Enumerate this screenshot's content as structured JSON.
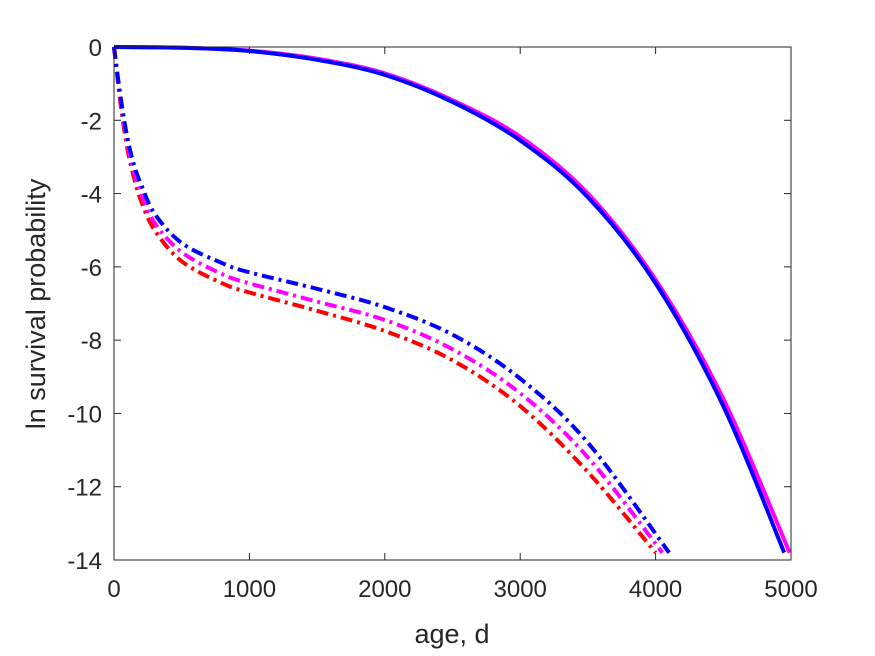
{
  "chart_data": {
    "type": "line",
    "title": "",
    "xlabel": "age, d",
    "ylabel": "ln survival probability",
    "xlim": [
      0,
      5000
    ],
    "ylim": [
      -14,
      0
    ],
    "xticks": [
      0,
      1000,
      2000,
      3000,
      4000,
      5000
    ],
    "yticks": [
      0,
      -2,
      -4,
      -6,
      -8,
      -10,
      -12,
      -14
    ],
    "xtick_labels": [
      "0",
      "1000",
      "2000",
      "3000",
      "4000",
      "5000"
    ],
    "ytick_labels": [
      "0",
      "-2",
      "-4",
      "-6",
      "-8",
      "-10",
      "-12",
      "-14"
    ],
    "grid": false,
    "legend": "none",
    "series": [
      {
        "style": "solid",
        "color": "#ff00ff",
        "x": [
          0,
          500,
          1000,
          1500,
          2000,
          2500,
          3000,
          3500,
          4000,
          4500,
          4990
        ],
        "y": [
          0,
          -0.02,
          -0.1,
          -0.32,
          -0.72,
          -1.45,
          -2.45,
          -4.0,
          -6.35,
          -9.6,
          -13.8
        ]
      },
      {
        "style": "solid",
        "color": "#0000ff",
        "x": [
          0,
          500,
          1000,
          1500,
          2000,
          2500,
          3000,
          3500,
          4000,
          4500,
          4950
        ],
        "y": [
          0,
          -0.02,
          -0.11,
          -0.35,
          -0.76,
          -1.5,
          -2.55,
          -4.1,
          -6.45,
          -9.8,
          -13.8
        ]
      },
      {
        "style": "dashdot",
        "color": "#ff0000",
        "x": [
          0,
          50,
          100,
          150,
          200,
          300,
          500,
          800,
          1000,
          1500,
          2000,
          2500,
          3000,
          3500,
          4000
        ],
        "y": [
          0,
          -1.6,
          -2.8,
          -3.6,
          -4.2,
          -5.0,
          -5.85,
          -6.45,
          -6.7,
          -7.2,
          -7.75,
          -8.55,
          -9.8,
          -11.6,
          -13.8
        ]
      },
      {
        "style": "dashdot",
        "color": "#ff00ff",
        "x": [
          0,
          50,
          100,
          150,
          200,
          300,
          500,
          800,
          1000,
          1500,
          2000,
          2500,
          3000,
          3500,
          4050
        ],
        "y": [
          0,
          -1.5,
          -2.65,
          -3.45,
          -4.0,
          -4.8,
          -5.6,
          -6.2,
          -6.45,
          -6.95,
          -7.45,
          -8.25,
          -9.45,
          -11.2,
          -13.8
        ]
      },
      {
        "style": "dashdot",
        "color": "#0000ff",
        "x": [
          0,
          50,
          100,
          150,
          200,
          300,
          500,
          800,
          1000,
          1500,
          2000,
          2500,
          3000,
          3500,
          4100
        ],
        "y": [
          0,
          -1.4,
          -2.5,
          -3.25,
          -3.75,
          -4.55,
          -5.35,
          -5.9,
          -6.15,
          -6.6,
          -7.1,
          -7.85,
          -9.05,
          -10.8,
          -13.8
        ]
      }
    ]
  }
}
